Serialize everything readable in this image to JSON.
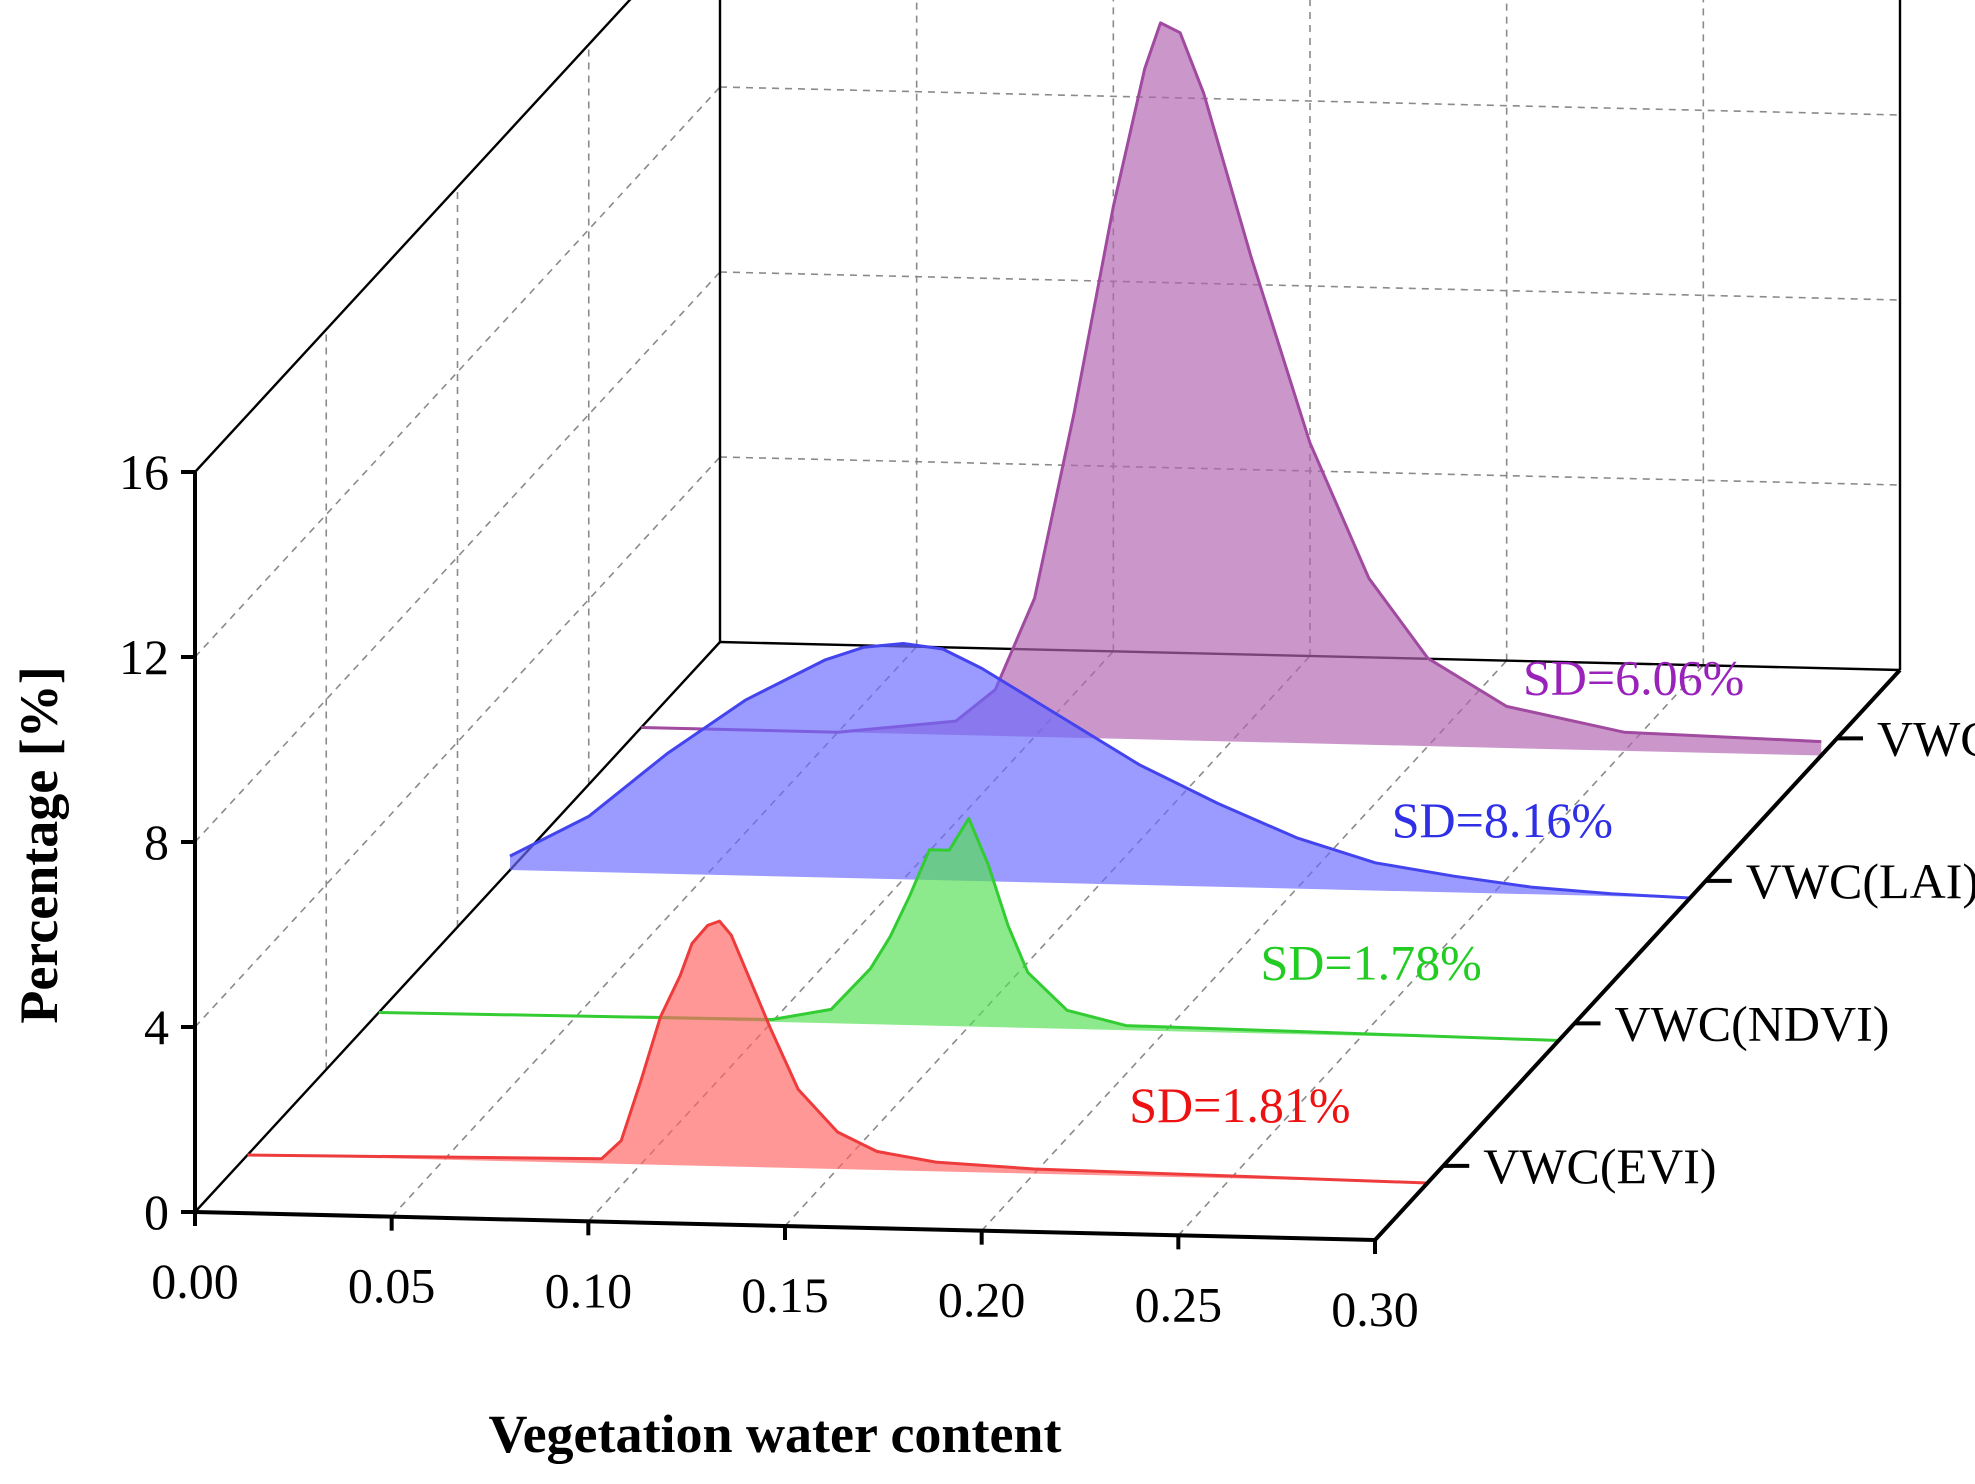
{
  "chart_data": {
    "type": "area",
    "projection": "3d-waterfall",
    "title": "",
    "xlabel": "Vegetation water content",
    "ylabel": "Percentage [%]",
    "xlim": [
      0,
      0.3
    ],
    "ylim": [
      0,
      16
    ],
    "x_ticks": [
      "0.00",
      "0.05",
      "0.10",
      "0.15",
      "0.20",
      "0.25",
      "0.30"
    ],
    "y_ticks": [
      "0",
      "4",
      "8",
      "12",
      "16"
    ],
    "depth_labels": [
      "VWC(EVI)",
      "VWC(NDVI)",
      "VWC(LAI)",
      "VWC(RVI)"
    ],
    "series": [
      {
        "name": "VWC(EVI)",
        "sd_label": "SD=1.81%",
        "color": "#ff6666",
        "line_color": "#ee3b3b",
        "text_color": "#ee1111",
        "points": [
          [
            0.0,
            0.0
          ],
          [
            0.09,
            0.1
          ],
          [
            0.095,
            0.5
          ],
          [
            0.1,
            1.8
          ],
          [
            0.105,
            3.2
          ],
          [
            0.11,
            4.1
          ],
          [
            0.113,
            4.8
          ],
          [
            0.117,
            5.2
          ],
          [
            0.12,
            5.3
          ],
          [
            0.123,
            5.0
          ],
          [
            0.127,
            4.2
          ],
          [
            0.133,
            3.0
          ],
          [
            0.14,
            1.7
          ],
          [
            0.15,
            0.8
          ],
          [
            0.16,
            0.4
          ],
          [
            0.175,
            0.2
          ],
          [
            0.2,
            0.1
          ],
          [
            0.3,
            0.0
          ]
        ]
      },
      {
        "name": "VWC(NDVI)",
        "sd_label": "SD=1.78%",
        "color": "#55e055",
        "line_color": "#33cc33",
        "text_color": "#22cc22",
        "points": [
          [
            0.0,
            0.0
          ],
          [
            0.1,
            0.05
          ],
          [
            0.115,
            0.3
          ],
          [
            0.125,
            1.2
          ],
          [
            0.13,
            1.9
          ],
          [
            0.135,
            2.8
          ],
          [
            0.14,
            3.8
          ],
          [
            0.145,
            3.8
          ],
          [
            0.15,
            4.5
          ],
          [
            0.155,
            3.5
          ],
          [
            0.16,
            2.2
          ],
          [
            0.165,
            1.2
          ],
          [
            0.175,
            0.4
          ],
          [
            0.19,
            0.1
          ],
          [
            0.3,
            0.0
          ]
        ]
      },
      {
        "name": "VWC(LAI)",
        "sd_label": "SD=8.16%",
        "color": "#6a6aff",
        "line_color": "#4444ee",
        "text_color": "#2f2fe6",
        "points": [
          [
            0.0,
            0.3
          ],
          [
            0.02,
            1.2
          ],
          [
            0.04,
            2.6
          ],
          [
            0.06,
            3.8
          ],
          [
            0.08,
            4.7
          ],
          [
            0.09,
            5.0
          ],
          [
            0.1,
            5.1
          ],
          [
            0.11,
            5.0
          ],
          [
            0.12,
            4.6
          ],
          [
            0.14,
            3.6
          ],
          [
            0.16,
            2.6
          ],
          [
            0.18,
            1.8
          ],
          [
            0.2,
            1.1
          ],
          [
            0.22,
            0.6
          ],
          [
            0.24,
            0.35
          ],
          [
            0.26,
            0.15
          ],
          [
            0.28,
            0.05
          ],
          [
            0.3,
            0.0
          ]
        ]
      },
      {
        "name": "VWC(RVI)",
        "sd_label": "SD=6.06%",
        "color": "#b266b2",
        "line_color": "#a04aa0",
        "text_color": "#9922bb",
        "points": [
          [
            0.0,
            0.0
          ],
          [
            0.05,
            0.0
          ],
          [
            0.08,
            0.3
          ],
          [
            0.09,
            1.0
          ],
          [
            0.1,
            3.0
          ],
          [
            0.11,
            7.0
          ],
          [
            0.12,
            11.5
          ],
          [
            0.128,
            14.5
          ],
          [
            0.132,
            15.5
          ],
          [
            0.137,
            15.3
          ],
          [
            0.143,
            14.0
          ],
          [
            0.155,
            10.5
          ],
          [
            0.17,
            6.5
          ],
          [
            0.185,
            3.6
          ],
          [
            0.2,
            1.9
          ],
          [
            0.22,
            0.9
          ],
          [
            0.25,
            0.4
          ],
          [
            0.3,
            0.3
          ]
        ]
      }
    ]
  }
}
